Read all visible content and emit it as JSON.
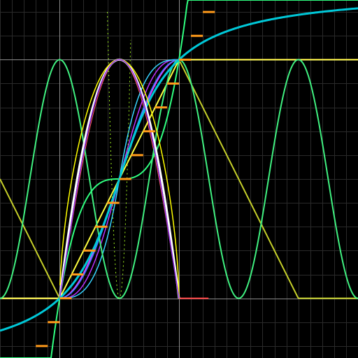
{
  "chart_data": {
    "type": "line",
    "title": "",
    "xlabel": "",
    "ylabel": "",
    "xlim": [
      -0.5,
      2.5
    ],
    "ylim": [
      -0.25,
      1.25
    ],
    "grid": true,
    "grid_step": 0.1,
    "axis_lines": [
      0,
      1
    ],
    "legend": "none",
    "background_color": "#000000",
    "grid_color": "#2a2a2a",
    "axis_color": "#8c8c8c",
    "series": [
      {
        "kind": "sine_hump",
        "color": "#ff5a5a",
        "width": 1.0
      },
      {
        "kind": "outer_clamp",
        "color": "#ff4040",
        "width": 2.0
      },
      {
        "kind": "smootherstep",
        "color": "#bb33ff",
        "width": 1.5
      },
      {
        "kind": "smoothstep",
        "color": "#e63cff",
        "width": 2.0
      },
      {
        "kind": "cubic_step",
        "color": "#37d3ff",
        "width": 1.5
      },
      {
        "kind": "sine_ease",
        "color": "#3a7bff",
        "width": 1.5
      },
      {
        "kind": "linear_clamp",
        "color": "#ffff40",
        "width": 2.0
      },
      {
        "kind": "triangle_fold",
        "color": "#c6d02a",
        "width": 2.0
      },
      {
        "kind": "cos_wave",
        "color": "#40f080",
        "width": 2.0
      },
      {
        "kind": "cubic_cross",
        "color": "#30ff80",
        "width": 2.0
      },
      {
        "kind": "atan_ease",
        "color": "#00c8d8",
        "width": 3.0
      },
      {
        "kind": "parabola_hump",
        "color": "#ffffff",
        "width": 3.0
      },
      {
        "kind": "steep_hump",
        "color": "#ffff00",
        "width": 1.5
      },
      {
        "kind": "dotted_parabola",
        "color": "#a0f020",
        "width": 1.0
      },
      {
        "kind": "violet_hump",
        "color": "#8a2be2",
        "width": 1.5
      },
      {
        "kind": "stair_step",
        "color": "#ff9a1a",
        "width": 3.0
      }
    ]
  }
}
